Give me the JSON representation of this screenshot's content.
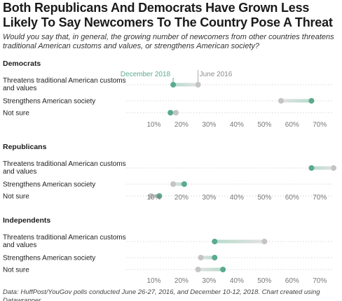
{
  "title": "Both Republicans And Democrats Have Grown Less Likely To Say Newcomers To The Country Pose A Threat",
  "subtitle": "Would you say that, in general, the growing number of newcomers from other countries threatens traditional American customs and values, or strengthens American society?",
  "footer": "Data: HuffPost/YouGov polls conducted June 26-27, 2016, and December 10-12, 2018. Chart created using Datawrapper",
  "colors": {
    "dec2018": "#5aab8d",
    "jun2016": "#c4c4c4",
    "text": "#1d1d1d",
    "tick": "#777777"
  },
  "chart_data": {
    "type": "dot-range",
    "legend": {
      "series_a": "December 2018",
      "series_b": "June 2016",
      "placement": "top of first panel"
    },
    "xlim": [
      0,
      75
    ],
    "ticks": [
      "10%",
      "20%",
      "30%",
      "40%",
      "50%",
      "60%",
      "70%"
    ],
    "tick_values": [
      10,
      20,
      30,
      40,
      50,
      60,
      70
    ],
    "panels": [
      {
        "group": "Democrats",
        "rows": [
          {
            "label_lines": [
              "Threatens traditional American customs",
              "and values"
            ],
            "dec2018": 17,
            "jun2016": 26
          },
          {
            "label_lines": [
              "Strengthens American society"
            ],
            "dec2018": 67,
            "jun2016": 56
          },
          {
            "label_lines": [
              "Not sure"
            ],
            "dec2018": 16,
            "jun2016": 18
          }
        ]
      },
      {
        "group": "Republicans",
        "rows": [
          {
            "label_lines": [
              "Threatens traditional American customs",
              "and values"
            ],
            "dec2018": 67,
            "jun2016": 75
          },
          {
            "label_lines": [
              "Strengthens American society"
            ],
            "dec2018": 21,
            "jun2016": 17
          },
          {
            "label_lines": [
              "Not sure"
            ],
            "dec2018": 12,
            "jun2016": 9
          }
        ]
      },
      {
        "group": "Independents",
        "rows": [
          {
            "label_lines": [
              "Threatens traditional American customs",
              "and values"
            ],
            "dec2018": 32,
            "jun2016": 50
          },
          {
            "label_lines": [
              "Strengthens American society"
            ],
            "dec2018": 32,
            "jun2016": 27
          },
          {
            "label_lines": [
              "Not sure"
            ],
            "dec2018": 35,
            "jun2016": 26
          }
        ]
      }
    ]
  }
}
